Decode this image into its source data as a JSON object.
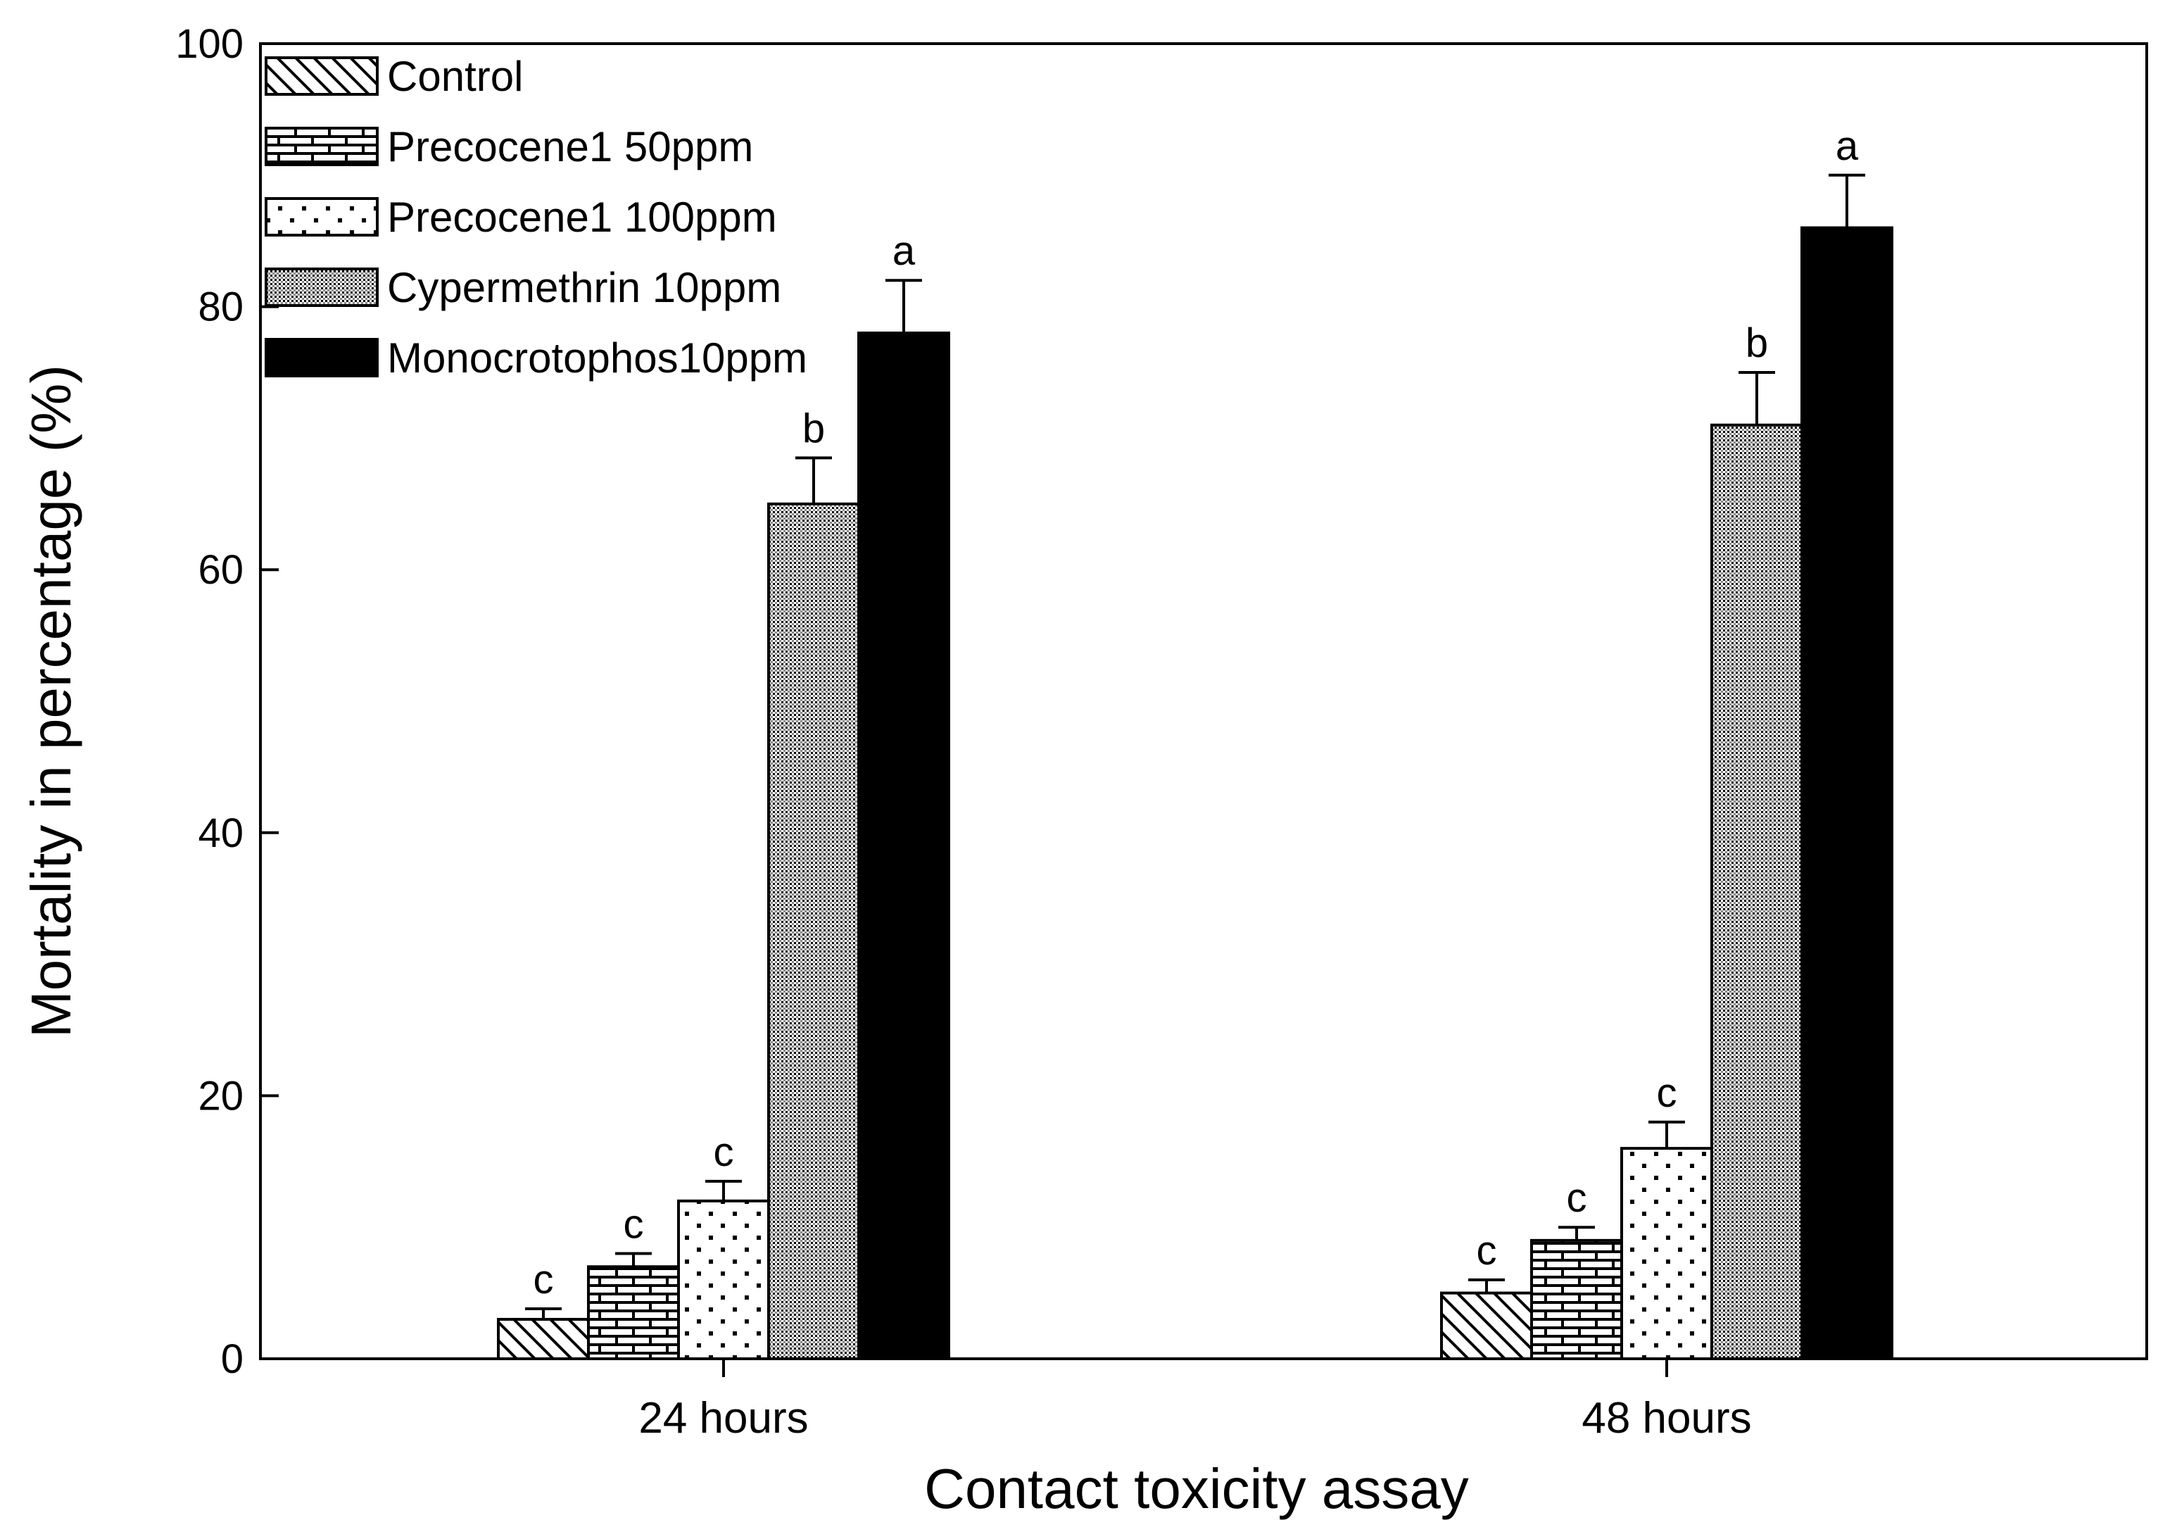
{
  "chart_data": {
    "type": "bar",
    "title": "",
    "xlabel": "Contact toxicity assay",
    "ylabel": "Mortality in percentage (%)",
    "ylim": [
      0,
      100
    ],
    "yticks": [
      0,
      20,
      40,
      60,
      80,
      100
    ],
    "grid": false,
    "legend_position": "top-left",
    "categories": [
      "24 hours",
      "48 hours"
    ],
    "series": [
      {
        "name": "Control",
        "pattern": "diagonal-hatch",
        "values": [
          3,
          5
        ],
        "errors": [
          0.8,
          1.0
        ],
        "significance": [
          "c",
          "c"
        ]
      },
      {
        "name": "Precocene1 50ppm",
        "pattern": "brick",
        "values": [
          7,
          9
        ],
        "errors": [
          1.0,
          1.0
        ],
        "significance": [
          "c",
          "c"
        ]
      },
      {
        "name": "Precocene1 100ppm",
        "pattern": "sparse-dots",
        "values": [
          12,
          16
        ],
        "errors": [
          1.5,
          2.0
        ],
        "significance": [
          "c",
          "c"
        ]
      },
      {
        "name": "Cypermethrin 10ppm",
        "pattern": "dense-dots",
        "values": [
          65,
          71
        ],
        "errors": [
          3.5,
          4.0
        ],
        "significance": [
          "b",
          "b"
        ]
      },
      {
        "name": "Monocrotophos10ppm",
        "pattern": "solid-black",
        "values": [
          78,
          86
        ],
        "errors": [
          4.0,
          4.0
        ],
        "significance": [
          "a",
          "a"
        ]
      }
    ]
  },
  "colors": {
    "bar_stroke": "#000000",
    "solid_fill": "#000000",
    "background": "#ffffff"
  }
}
